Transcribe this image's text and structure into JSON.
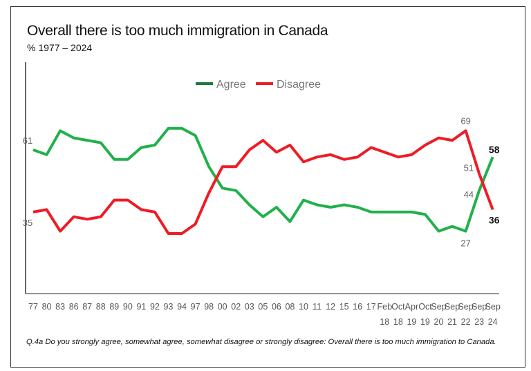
{
  "chart_data": {
    "type": "line",
    "title": "Overall there is too much immigration in Canada",
    "subtitle": "%  1977 – 2024",
    "note": "Q.4a Do you strongly agree, somewhat agree, somewhat disagree or strongly disagree: Overall there is too much immigration to Canada.",
    "categories": [
      [
        "77",
        ""
      ],
      [
        "80",
        ""
      ],
      [
        "83",
        ""
      ],
      [
        "86",
        ""
      ],
      [
        "87",
        ""
      ],
      [
        "88",
        ""
      ],
      [
        "89",
        ""
      ],
      [
        "90",
        ""
      ],
      [
        "91",
        ""
      ],
      [
        "92",
        ""
      ],
      [
        "93",
        ""
      ],
      [
        "94",
        ""
      ],
      [
        "97",
        ""
      ],
      [
        "98",
        ""
      ],
      [
        "00",
        ""
      ],
      [
        "02",
        ""
      ],
      [
        "03",
        ""
      ],
      [
        "05",
        ""
      ],
      [
        "06",
        ""
      ],
      [
        "08",
        ""
      ],
      [
        "10",
        ""
      ],
      [
        "11",
        ""
      ],
      [
        "12",
        ""
      ],
      [
        "15",
        ""
      ],
      [
        "16",
        ""
      ],
      [
        "17",
        ""
      ],
      [
        "Feb",
        "18"
      ],
      [
        "Oct",
        "18"
      ],
      [
        "Apr",
        "19"
      ],
      [
        "Oct",
        "19"
      ],
      [
        "Sep",
        "20"
      ],
      [
        "Sep",
        "21"
      ],
      [
        "Sep",
        "22"
      ],
      [
        "Sep",
        "23"
      ],
      [
        "Sep",
        "24"
      ]
    ],
    "ylim": [
      0,
      100
    ],
    "grid": false,
    "legend_placement": "top-center",
    "series": [
      {
        "name": "Agree",
        "color": "#22b04b",
        "legend_color": "#1e7a3a",
        "values": [
          61,
          59,
          69,
          66,
          65,
          64,
          57,
          57,
          62,
          63,
          70,
          70,
          67,
          54,
          45,
          44,
          38,
          33,
          37,
          31,
          40,
          38,
          37,
          38,
          37,
          35,
          35,
          35,
          35,
          34,
          27,
          29,
          27,
          44,
          58
        ]
      },
      {
        "name": "Disagree",
        "color": "#ee1c25",
        "legend_color": "#ee1c25",
        "values": [
          35,
          36,
          27,
          33,
          32,
          33,
          40,
          40,
          36,
          35,
          26,
          26,
          30,
          43,
          54,
          54,
          61,
          65,
          60,
          63,
          56,
          58,
          59,
          57,
          58,
          62,
          60,
          58,
          59,
          63,
          66,
          65,
          69,
          51,
          36
        ]
      }
    ],
    "data_labels": [
      {
        "series": "Agree",
        "index": 0,
        "text": "61",
        "bold": false
      },
      {
        "series": "Disagree",
        "index": 0,
        "text": "35",
        "bold": false
      },
      {
        "series": "Disagree",
        "index": 32,
        "text": "69",
        "bold": false
      },
      {
        "series": "Agree",
        "index": 32,
        "text": "27",
        "bold": false
      },
      {
        "series": "Disagree",
        "index": 33,
        "text": "51",
        "bold": false
      },
      {
        "series": "Agree",
        "index": 33,
        "text": "44",
        "bold": false
      },
      {
        "series": "Agree",
        "index": 34,
        "text": "58",
        "bold": true
      },
      {
        "series": "Disagree",
        "index": 34,
        "text": "36",
        "bold": true
      }
    ]
  }
}
